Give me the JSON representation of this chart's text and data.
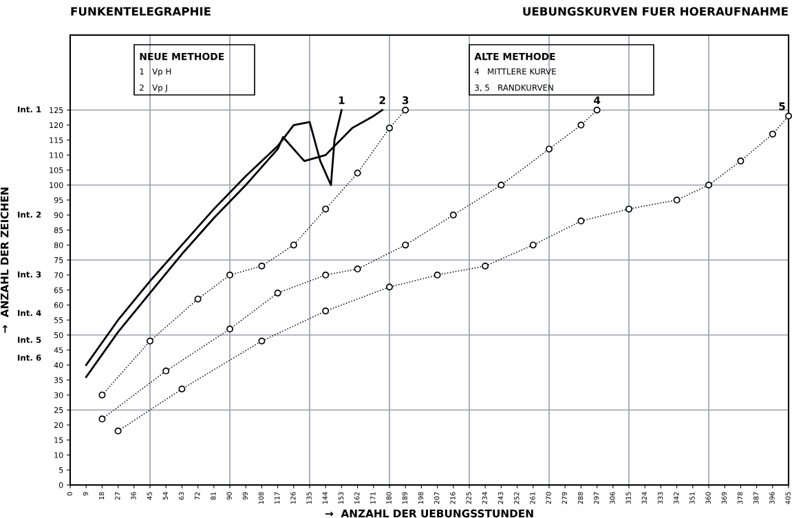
{
  "chart_data": {
    "type": "line",
    "title": "FUNKENTELEGRAPHIE",
    "subtitle": "UEBUNGSKURVEN FUER HOERAUFNAHME",
    "xlabel": "→  ANZAHL DER UEBUNGSSTUNDEN",
    "ylabel": "→  ANZAHL DER ZEICHEN",
    "xlim": [
      0,
      405
    ],
    "ylim": [
      0,
      150
    ],
    "xticks": [
      0,
      9,
      18,
      27,
      36,
      45,
      54,
      63,
      72,
      81,
      90,
      99,
      108,
      117,
      126,
      135,
      144,
      153,
      162,
      171,
      180,
      189,
      198,
      207,
      216,
      225,
      234,
      243,
      252,
      261,
      270,
      279,
      288,
      297,
      306,
      315,
      324,
      333,
      342,
      351,
      360,
      369,
      378,
      387,
      396,
      405
    ],
    "yticks": [
      0,
      5,
      10,
      15,
      20,
      25,
      30,
      35,
      40,
      45,
      50,
      55,
      60,
      65,
      70,
      75,
      80,
      85,
      90,
      95,
      100,
      105,
      110,
      115,
      120,
      125
    ],
    "grid": false,
    "ref_lines": [
      {
        "axis": "x",
        "value": 45,
        "color": "#9aa0ad"
      },
      {
        "axis": "x",
        "value": 90,
        "color": "#9aa0ad"
      },
      {
        "axis": "x",
        "value": 135,
        "color": "#9aa0ad"
      },
      {
        "axis": "x",
        "value": 180,
        "color": "#9aa0ad"
      },
      {
        "axis": "x",
        "value": 225,
        "color": "#9aa0ad"
      },
      {
        "axis": "x",
        "value": 270,
        "color": "#9aa0ad"
      },
      {
        "axis": "x",
        "value": 315,
        "color": "#9aa0ad"
      },
      {
        "axis": "x",
        "value": 360,
        "color": "#9aa0ad"
      },
      {
        "axis": "y",
        "value": 25,
        "color": "#9aa0ad"
      },
      {
        "axis": "y",
        "value": 50,
        "color": "#9aa0ad"
      },
      {
        "axis": "y",
        "value": 75,
        "color": "#9aa0ad"
      },
      {
        "axis": "y",
        "value": 100,
        "color": "#9aa0ad"
      },
      {
        "axis": "y",
        "value": 125,
        "color": "#9aa0ad"
      }
    ],
    "series": [
      {
        "name": "1",
        "color": "#000000",
        "line_style": "solid",
        "marker": "none",
        "x": [
          9,
          27,
          45,
          63,
          81,
          99,
          117,
          126,
          135,
          141,
          147,
          149,
          153
        ],
        "values": [
          40,
          55,
          68,
          80,
          92,
          103,
          113,
          120,
          121,
          108,
          100,
          115,
          125
        ]
      },
      {
        "name": "2",
        "color": "#000000",
        "line_style": "solid",
        "marker": "none",
        "x": [
          9,
          27,
          45,
          63,
          81,
          99,
          117,
          120,
          132,
          144,
          159,
          171,
          176
        ],
        "values": [
          36,
          51,
          64,
          77,
          89,
          100,
          112,
          116,
          108,
          110,
          119,
          123,
          125
        ]
      },
      {
        "name": "3",
        "color": "#000000",
        "line_style": "dotted",
        "marker": "circle",
        "x": [
          18,
          45,
          72,
          90,
          108,
          126,
          144,
          162,
          180,
          189
        ],
        "values": [
          30,
          48,
          62,
          70,
          73,
          80,
          92,
          104,
          119,
          125
        ]
      },
      {
        "name": "4",
        "color": "#000000",
        "line_style": "dotted",
        "marker": "circle",
        "x": [
          18,
          54,
          90,
          117,
          144,
          162,
          189,
          216,
          243,
          270,
          288,
          297
        ],
        "values": [
          22,
          38,
          52,
          64,
          70,
          72,
          80,
          90,
          100,
          112,
          120,
          125
        ]
      },
      {
        "name": "5",
        "color": "#000000",
        "line_style": "dotted",
        "marker": "circle",
        "x": [
          27,
          63,
          108,
          144,
          180,
          207,
          234,
          261,
          288,
          315,
          342,
          360,
          378,
          396,
          405
        ],
        "values": [
          18,
          32,
          48,
          58,
          66,
          70,
          73,
          80,
          88,
          92,
          95,
          100,
          108,
          117,
          123
        ]
      }
    ],
    "annotations": [
      "NEUE METHODE",
      "1   Vp H",
      "2   Vp J",
      "ALTE METHODE",
      "4   MITTLERE KURVE",
      "3, 5   RANDKURVEN",
      "Int. 1",
      "Int. 2",
      "Int. 3",
      "Int. 4",
      "Int. 5",
      "Int. 6"
    ]
  }
}
